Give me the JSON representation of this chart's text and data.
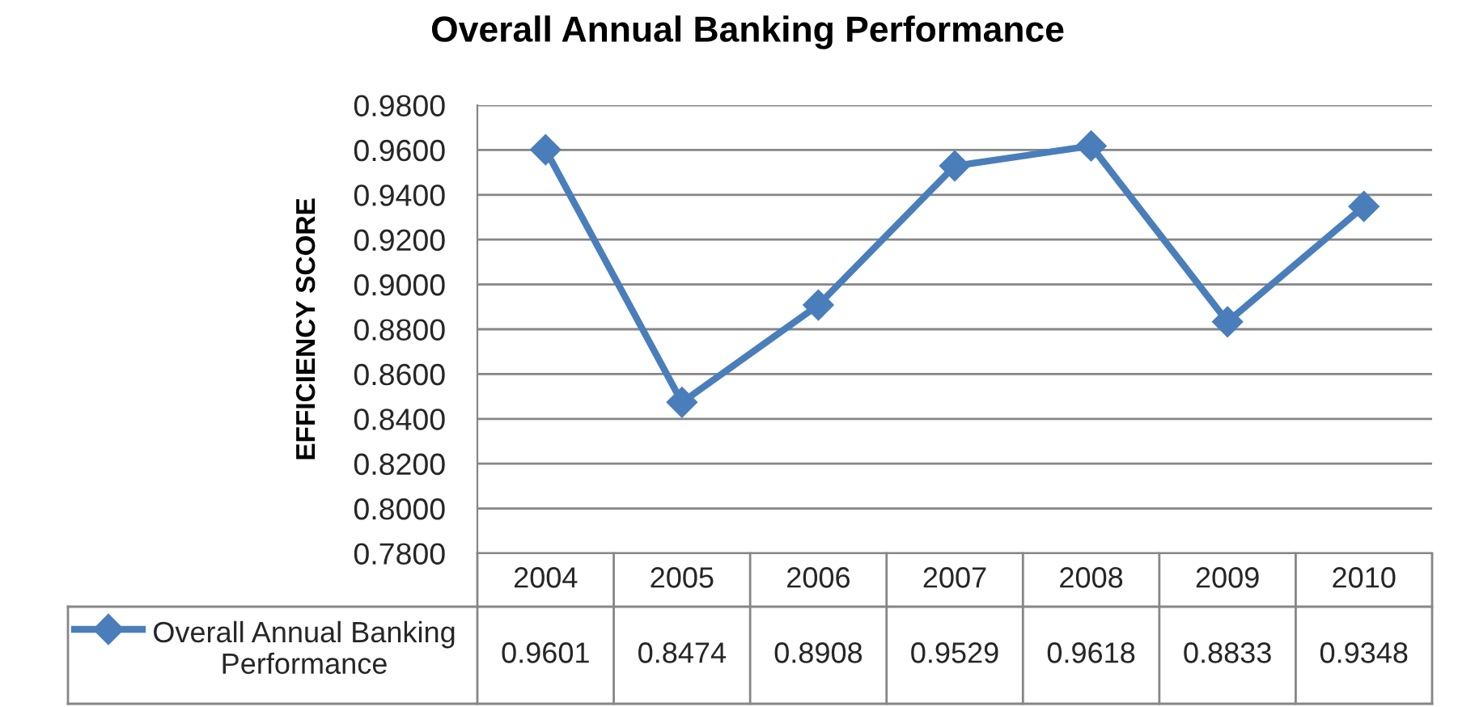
{
  "chart_data": {
    "type": "line",
    "title": "Overall Annual Banking Performance",
    "ylabel": "EFFICIENCY SCORE",
    "categories": [
      "2004",
      "2005",
      "2006",
      "2007",
      "2008",
      "2009",
      "2010"
    ],
    "series": [
      {
        "name": "Overall Annual Banking Performance",
        "color": "#4a7ebb",
        "values": [
          0.9601,
          0.8474,
          0.8908,
          0.9529,
          0.9618,
          0.8833,
          0.9348
        ]
      }
    ],
    "ylim": [
      0.78,
      0.98
    ],
    "yticks": [
      {
        "value": 0.78,
        "label": "0.7800"
      },
      {
        "value": 0.8,
        "label": "0.8000"
      },
      {
        "value": 0.82,
        "label": "0.8200"
      },
      {
        "value": 0.84,
        "label": "0.8400"
      },
      {
        "value": 0.86,
        "label": "0.8600"
      },
      {
        "value": 0.88,
        "label": "0.8800"
      },
      {
        "value": 0.9,
        "label": "0.9000"
      },
      {
        "value": 0.92,
        "label": "0.9200"
      },
      {
        "value": 0.94,
        "label": "0.9400"
      },
      {
        "value": 0.96,
        "label": "0.9600"
      },
      {
        "value": 0.98,
        "label": "0.9800"
      }
    ],
    "grid": "y",
    "marker": "diamond",
    "line_style": "solid",
    "data_labels": true,
    "legend": "bottom"
  }
}
